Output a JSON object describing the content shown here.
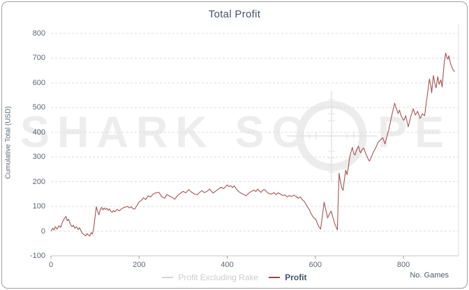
{
  "title": "Total Profit",
  "axes": {
    "x_label": "No. Games",
    "y_label": "Cumulative Total (USD)",
    "x_ticks": [
      0,
      200,
      400,
      600,
      800
    ],
    "y_ticks": [
      -100,
      0,
      100,
      200,
      300,
      400,
      500,
      600,
      700,
      800
    ],
    "xlim": [
      0,
      925
    ],
    "ylim": [
      -100,
      800
    ]
  },
  "legend": {
    "items": [
      {
        "label": "Profit Excluding Rake",
        "dash_color": "#d4d4d4"
      },
      {
        "label": "Profit",
        "dash_color": "#9a4343"
      }
    ]
  },
  "watermark": {
    "left_text": "SHARK SC",
    "right_text": "PE",
    "icon": "scope-reticle-icon",
    "color": "#ededed"
  },
  "colors": {
    "title": "#455468",
    "tick_label": "#5d6673",
    "gridline": "#dcdcdc",
    "axis": "#c4c4c4",
    "profit_line": "#a65353",
    "card_border": "#9e9e9e"
  },
  "chart_data": {
    "type": "line",
    "title": "Total Profit",
    "xlabel": "No. Games",
    "ylabel": "Cumulative Total (USD)",
    "xlim": [
      0,
      925
    ],
    "ylim": [
      -100,
      800
    ],
    "x_ticks": [
      0,
      200,
      400,
      600,
      800
    ],
    "y_ticks": [
      -100,
      0,
      100,
      200,
      300,
      400,
      500,
      600,
      700,
      800
    ],
    "grid": "horizontal-dashed",
    "legend_position": "bottom-center",
    "series": [
      {
        "name": "Profit Excluding Rake",
        "color": "#d4d4d4",
        "points": []
      },
      {
        "name": "Profit",
        "color": "#a65353",
        "points": [
          [
            0,
            0
          ],
          [
            4,
            12
          ],
          [
            7,
            4
          ],
          [
            10,
            18
          ],
          [
            14,
            8
          ],
          [
            18,
            22
          ],
          [
            22,
            15
          ],
          [
            26,
            35
          ],
          [
            30,
            50
          ],
          [
            34,
            59
          ],
          [
            37,
            42
          ],
          [
            40,
            48
          ],
          [
            44,
            28
          ],
          [
            48,
            18
          ],
          [
            51,
            24
          ],
          [
            54,
            12
          ],
          [
            58,
            18
          ],
          [
            62,
            6
          ],
          [
            65,
            14
          ],
          [
            68,
            2
          ],
          [
            71,
            -8
          ],
          [
            75,
            -14
          ],
          [
            79,
            -19
          ],
          [
            82,
            -10
          ],
          [
            85,
            -16
          ],
          [
            88,
            -20
          ],
          [
            91,
            -6
          ],
          [
            94,
            -12
          ],
          [
            97,
            10
          ],
          [
            100,
            55
          ],
          [
            103,
            99
          ],
          [
            106,
            80
          ],
          [
            109,
            66
          ],
          [
            112,
            88
          ],
          [
            115,
            96
          ],
          [
            118,
            86
          ],
          [
            121,
            94
          ],
          [
            124,
            88
          ],
          [
            127,
            92
          ],
          [
            130,
            84
          ],
          [
            133,
            90
          ],
          [
            136,
            80
          ],
          [
            139,
            76
          ],
          [
            142,
            84
          ],
          [
            145,
            78
          ],
          [
            150,
            88
          ],
          [
            155,
            82
          ],
          [
            160,
            90
          ],
          [
            165,
            95
          ],
          [
            170,
            98
          ],
          [
            174,
            100
          ],
          [
            178,
            94
          ],
          [
            182,
            99
          ],
          [
            186,
            91
          ],
          [
            190,
            89
          ],
          [
            195,
            103
          ],
          [
            200,
            118
          ],
          [
            205,
            124
          ],
          [
            210,
            135
          ],
          [
            215,
            128
          ],
          [
            221,
            143
          ],
          [
            226,
            138
          ],
          [
            232,
            150
          ],
          [
            238,
            155
          ],
          [
            245,
            157
          ],
          [
            251,
            140
          ],
          [
            258,
            133
          ],
          [
            263,
            148
          ],
          [
            270,
            141
          ],
          [
            276,
            135
          ],
          [
            281,
            129
          ],
          [
            288,
            146
          ],
          [
            294,
            153
          ],
          [
            300,
            161
          ],
          [
            306,
            155
          ],
          [
            313,
            168
          ],
          [
            319,
            158
          ],
          [
            326,
            150
          ],
          [
            332,
            147
          ],
          [
            338,
            158
          ],
          [
            343,
            164
          ],
          [
            348,
            156
          ],
          [
            354,
            161
          ],
          [
            360,
            170
          ],
          [
            365,
            160
          ],
          [
            368,
            154
          ],
          [
            374,
            162
          ],
          [
            380,
            170
          ],
          [
            386,
            178
          ],
          [
            392,
            172
          ],
          [
            400,
            187
          ],
          [
            404,
            180
          ],
          [
            408,
            184
          ],
          [
            412,
            176
          ],
          [
            416,
            183
          ],
          [
            421,
            170
          ],
          [
            426,
            160
          ],
          [
            432,
            153
          ],
          [
            438,
            148
          ],
          [
            443,
            143
          ],
          [
            448,
            152
          ],
          [
            454,
            160
          ],
          [
            461,
            166
          ],
          [
            465,
            160
          ],
          [
            469,
            170
          ],
          [
            473,
            162
          ],
          [
            477,
            157
          ],
          [
            481,
            166
          ],
          [
            485,
            168
          ],
          [
            490,
            158
          ],
          [
            495,
            152
          ],
          [
            501,
            150
          ],
          [
            506,
            156
          ],
          [
            511,
            148
          ],
          [
            516,
            155
          ],
          [
            521,
            150
          ],
          [
            526,
            144
          ],
          [
            531,
            147
          ],
          [
            536,
            138
          ],
          [
            541,
            144
          ],
          [
            546,
            140
          ],
          [
            551,
            146
          ],
          [
            556,
            141
          ],
          [
            561,
            133
          ],
          [
            566,
            139
          ],
          [
            570,
            128
          ],
          [
            575,
            120
          ],
          [
            579,
            108
          ],
          [
            583,
            96
          ],
          [
            587,
            85
          ],
          [
            590,
            72
          ],
          [
            594,
            60
          ],
          [
            598,
            52
          ],
          [
            601,
            48
          ],
          [
            605,
            30
          ],
          [
            609,
            15
          ],
          [
            612,
            8
          ],
          [
            616,
            60
          ],
          [
            620,
            117
          ],
          [
            624,
            85
          ],
          [
            628,
            53
          ],
          [
            632,
            70
          ],
          [
            636,
            81
          ],
          [
            640,
            55
          ],
          [
            644,
            30
          ],
          [
            647,
            18
          ],
          [
            650,
            5
          ],
          [
            652,
            120
          ],
          [
            654,
            235
          ],
          [
            657,
            200
          ],
          [
            660,
            175
          ],
          [
            663,
            165
          ],
          [
            666,
            210
          ],
          [
            669,
            247
          ],
          [
            672,
            228
          ],
          [
            675,
            260
          ],
          [
            678,
            300
          ],
          [
            681,
            320
          ],
          [
            684,
            339
          ],
          [
            687,
            315
          ],
          [
            690,
            308
          ],
          [
            694,
            330
          ],
          [
            698,
            344
          ],
          [
            701,
            322
          ],
          [
            703,
            317
          ],
          [
            706,
            330
          ],
          [
            710,
            336
          ],
          [
            714,
            315
          ],
          [
            718,
            300
          ],
          [
            721,
            288
          ],
          [
            723,
            283
          ],
          [
            727,
            300
          ],
          [
            731,
            317
          ],
          [
            735,
            330
          ],
          [
            739,
            345
          ],
          [
            742,
            358
          ],
          [
            747,
            368
          ],
          [
            753,
            378
          ],
          [
            758,
            353
          ],
          [
            762,
            380
          ],
          [
            766,
            406
          ],
          [
            771,
            447
          ],
          [
            775,
            480
          ],
          [
            780,
            518
          ],
          [
            784,
            495
          ],
          [
            788,
            476
          ],
          [
            791,
            490
          ],
          [
            795,
            465
          ],
          [
            801,
            448
          ],
          [
            805,
            467
          ],
          [
            811,
            422
          ],
          [
            816,
            460
          ],
          [
            822,
            495
          ],
          [
            827,
            470
          ],
          [
            832,
            485
          ],
          [
            838,
            456
          ],
          [
            843,
            475
          ],
          [
            848,
            467
          ],
          [
            852,
            520
          ],
          [
            856,
            574
          ],
          [
            859,
            616
          ],
          [
            862,
            590
          ],
          [
            864,
            560
          ],
          [
            868,
            630
          ],
          [
            871,
            600
          ],
          [
            874,
            580
          ],
          [
            878,
            625
          ],
          [
            881,
            594
          ],
          [
            885,
            612
          ],
          [
            888,
            583
          ],
          [
            891,
            650
          ],
          [
            893,
            690
          ],
          [
            896,
            721
          ],
          [
            898,
            705
          ],
          [
            901,
            696
          ],
          [
            903,
            710
          ],
          [
            906,
            685
          ],
          [
            909,
            668
          ],
          [
            913,
            652
          ],
          [
            916,
            645
          ]
        ]
      }
    ]
  }
}
